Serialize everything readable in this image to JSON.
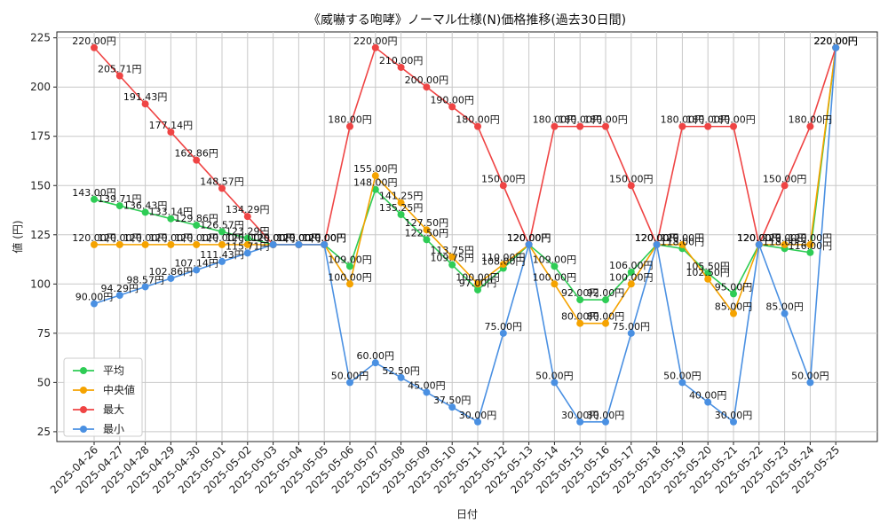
{
  "chart_data": {
    "type": "line",
    "title": "《威嚇する咆哮》ノーマル仕様(N)価格推移(過去30日間)",
    "xlabel": "日付",
    "ylabel": "値 (円)",
    "ylim": [
      20,
      228
    ],
    "yticks": [
      25,
      50,
      75,
      100,
      125,
      150,
      175,
      200,
      225
    ],
    "grid": true,
    "legend_position": "bottom-left",
    "label_suffix": "円",
    "categories": [
      "2025-04-26",
      "2025-04-27",
      "2025-04-28",
      "2025-04-29",
      "2025-04-30",
      "2025-05-01",
      "2025-05-02",
      "2025-05-03",
      "2025-05-04",
      "2025-05-05",
      "2025-05-06",
      "2025-05-07",
      "2025-05-08",
      "2025-05-09",
      "2025-05-10",
      "2025-05-11",
      "2025-05-12",
      "2025-05-13",
      "2025-05-14",
      "2025-05-15",
      "2025-05-16",
      "2025-05-17",
      "2025-05-18",
      "2025-05-19",
      "2025-05-20",
      "2025-05-21",
      "2025-05-22",
      "2025-05-23",
      "2025-05-24",
      "2025-05-25"
    ],
    "series": [
      {
        "name": "平均",
        "color": "#2ecc55",
        "values": [
          143.0,
          139.71,
          136.43,
          133.14,
          129.86,
          126.57,
          123.29,
          120.0,
          120.0,
          120.0,
          109.0,
          148.0,
          135.25,
          122.5,
          109.75,
          97.0,
          108.0,
          120.0,
          109.0,
          92.0,
          92.0,
          106.0,
          120.0,
          118.0,
          105.5,
          95.0,
          120.0,
          118.0,
          116.0,
          220.0
        ]
      },
      {
        "name": "中央値",
        "color": "#f5a300",
        "values": [
          120.0,
          120.0,
          120.0,
          120.0,
          120.0,
          120.0,
          120.0,
          120.0,
          120.0,
          120.0,
          100.0,
          155.0,
          141.25,
          127.5,
          113.75,
          100.0,
          110.0,
          120.0,
          100.0,
          80.0,
          80.0,
          100.0,
          120.0,
          120.0,
          102.5,
          85.0,
          120.0,
          120.0,
          120.0,
          220.0
        ]
      },
      {
        "name": "最大",
        "color": "#ef4444",
        "values": [
          220.0,
          205.71,
          191.43,
          177.14,
          162.86,
          148.57,
          134.29,
          120.0,
          120.0,
          120.0,
          180.0,
          220.0,
          210.0,
          200.0,
          190.0,
          180.0,
          150.0,
          120.0,
          180.0,
          180.0,
          180.0,
          150.0,
          120.0,
          180.0,
          180.0,
          180.0,
          120.0,
          150.0,
          180.0,
          220.0
        ]
      },
      {
        "name": "最小",
        "color": "#4a90e2",
        "values": [
          90.0,
          94.29,
          98.57,
          102.86,
          107.14,
          111.43,
          115.71,
          120.0,
          120.0,
          120.0,
          50.0,
          60.0,
          52.5,
          45.0,
          37.5,
          30.0,
          75.0,
          120.0,
          50.0,
          30.0,
          30.0,
          75.0,
          120.0,
          50.0,
          40.0,
          30.0,
          120.0,
          85.0,
          50.0,
          220.0
        ]
      }
    ]
  }
}
